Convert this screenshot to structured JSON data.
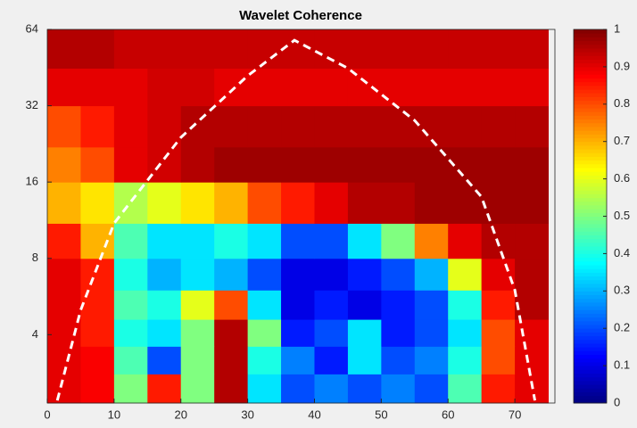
{
  "chart_data": {
    "type": "heatmap",
    "title": "Wavelet Coherence",
    "x_bins": [
      0,
      5,
      10,
      15,
      20,
      25,
      30,
      35,
      40,
      45,
      50,
      55,
      60,
      65,
      70,
      75
    ],
    "y_bins": [
      2.15,
      2.8,
      3.6,
      4.6,
      6,
      8,
      11,
      16,
      22,
      32,
      45,
      64
    ],
    "z": [
      [
        0.9,
        0.88,
        0.5,
        0.85,
        0.5,
        0.95,
        0.35,
        0.2,
        0.25,
        0.2,
        0.25,
        0.2,
        0.45,
        0.85,
        0.9
      ],
      [
        0.9,
        0.88,
        0.45,
        0.2,
        0.5,
        0.95,
        0.4,
        0.25,
        0.15,
        0.35,
        0.2,
        0.25,
        0.4,
        0.8,
        0.9
      ],
      [
        0.9,
        0.85,
        0.4,
        0.35,
        0.5,
        0.95,
        0.5,
        0.15,
        0.2,
        0.35,
        0.15,
        0.2,
        0.35,
        0.8,
        0.9
      ],
      [
        0.9,
        0.85,
        0.45,
        0.4,
        0.6,
        0.8,
        0.35,
        0.1,
        0.15,
        0.1,
        0.15,
        0.2,
        0.4,
        0.85,
        0.95
      ],
      [
        0.9,
        0.85,
        0.4,
        0.3,
        0.35,
        0.3,
        0.2,
        0.1,
        0.1,
        0.15,
        0.2,
        0.3,
        0.6,
        0.9,
        0.95
      ],
      [
        0.85,
        0.7,
        0.45,
        0.35,
        0.35,
        0.4,
        0.35,
        0.2,
        0.2,
        0.35,
        0.5,
        0.75,
        0.9,
        0.95,
        0.95
      ],
      [
        0.7,
        0.65,
        0.55,
        0.6,
        0.65,
        0.7,
        0.8,
        0.85,
        0.9,
        0.95,
        0.95,
        0.97,
        0.97,
        0.97,
        0.97
      ],
      [
        0.75,
        0.8,
        0.9,
        0.92,
        0.95,
        0.97,
        0.97,
        0.97,
        0.97,
        0.97,
        0.97,
        0.97,
        0.97,
        0.97,
        0.97
      ],
      [
        0.8,
        0.85,
        0.9,
        0.92,
        0.95,
        0.95,
        0.95,
        0.95,
        0.95,
        0.95,
        0.95,
        0.95,
        0.95,
        0.95,
        0.95
      ],
      [
        0.9,
        0.9,
        0.9,
        0.92,
        0.92,
        0.9,
        0.9,
        0.9,
        0.9,
        0.9,
        0.9,
        0.9,
        0.9,
        0.9,
        0.9
      ],
      [
        0.95,
        0.95,
        0.93,
        0.93,
        0.93,
        0.93,
        0.93,
        0.93,
        0.93,
        0.93,
        0.93,
        0.93,
        0.93,
        0.93,
        0.93
      ]
    ],
    "coi": {
      "x": [
        1.5,
        5,
        10,
        20,
        30,
        37,
        45,
        55,
        65,
        70,
        73
      ],
      "y": [
        2.2,
        5,
        11,
        24,
        42,
        58,
        45,
        28,
        14,
        6,
        2.2
      ],
      "color": "#ffffff"
    },
    "xlim": [
      0,
      76
    ],
    "xticks": [
      0,
      10,
      20,
      30,
      40,
      50,
      60,
      70
    ],
    "ylim": [
      2.15,
      64
    ],
    "yticks": [
      4,
      8,
      16,
      32,
      64
    ],
    "y_log": true,
    "y_log_base": 2,
    "colorbar": {
      "colormap": "jet",
      "lim": [
        0,
        1
      ],
      "ticks": [
        0,
        0.1,
        0.2,
        0.3,
        0.4,
        0.5,
        0.6,
        0.7,
        0.8,
        0.9,
        1
      ]
    }
  }
}
